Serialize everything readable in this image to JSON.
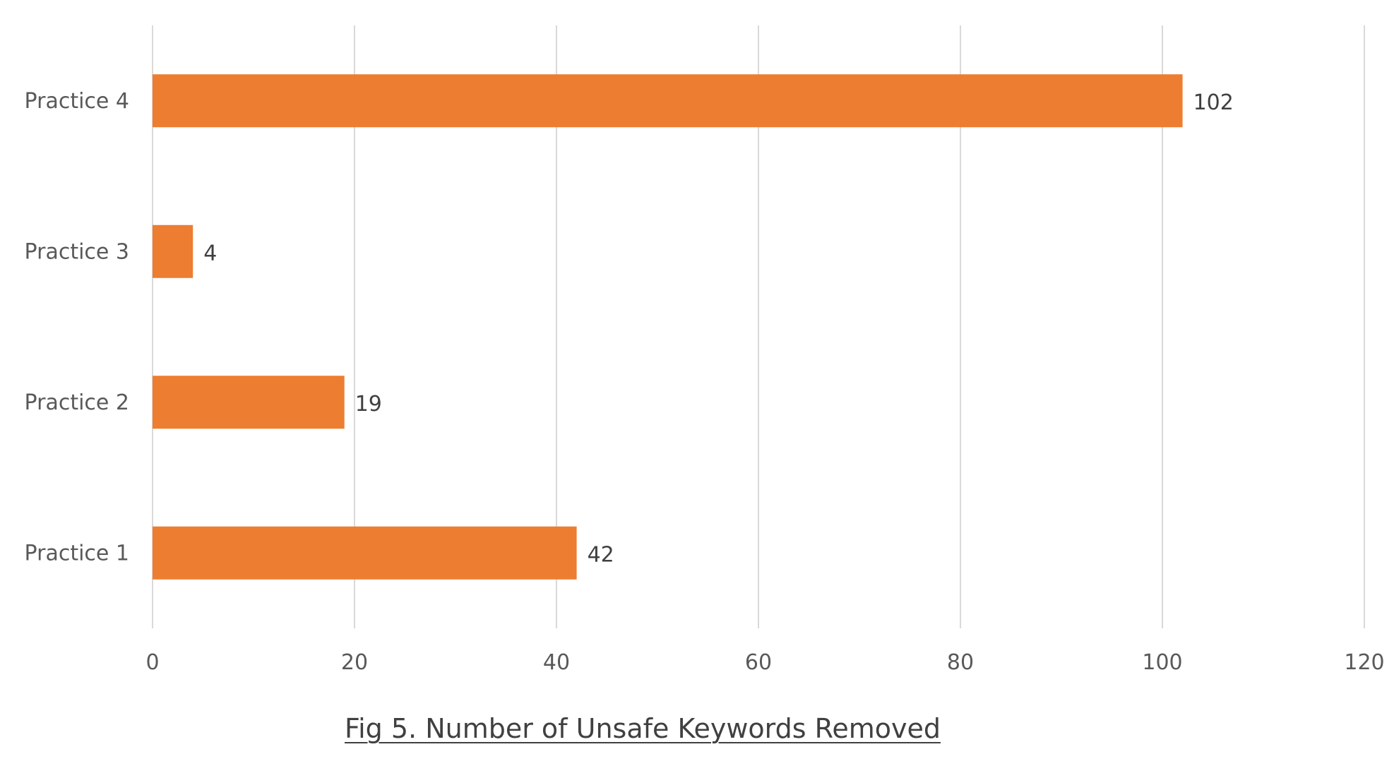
{
  "chart_data": {
    "type": "bar",
    "orientation": "horizontal",
    "categories": [
      "Practice 1",
      "Practice 2",
      "Practice 3",
      "Practice 4"
    ],
    "values": [
      42,
      19,
      4,
      102
    ],
    "xlim": [
      0,
      120
    ],
    "xticks": [
      0,
      20,
      40,
      60,
      80,
      100,
      120
    ],
    "grid": true,
    "bar_color": "#ed7d31",
    "data_labels": true
  },
  "caption": "Fig 5. Number of Unsafe Keywords Removed"
}
